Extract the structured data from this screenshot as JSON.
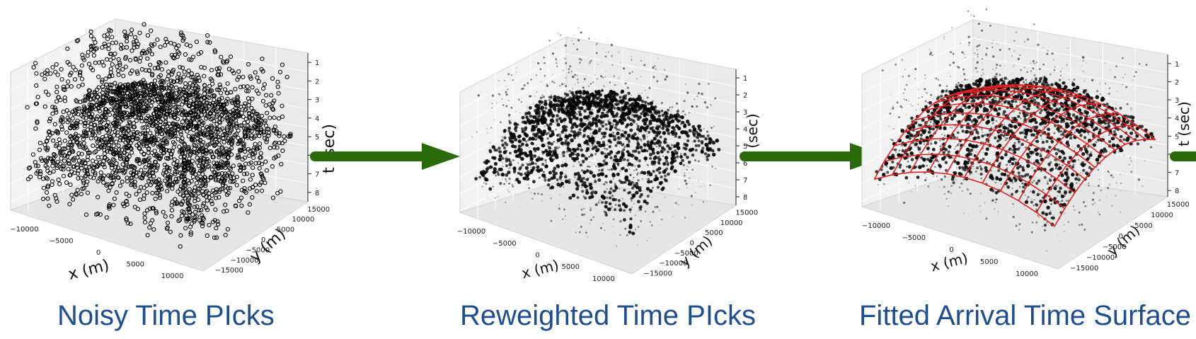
{
  "palette": {
    "arrow": "#2a6a0a",
    "surface": "#e02020",
    "caption": "#1f4e8c",
    "pane": "#f2f2f2"
  },
  "chart_data": [
    {
      "type": "scatter3d",
      "caption": "Noisy Time PIcks",
      "xlabel": "x (m)",
      "ylabel": "y (m)",
      "zlabel": "t (sec)",
      "x_ticks": [
        "−10000",
        "−5000",
        "0",
        "5000",
        "10000"
      ],
      "y_ticks": [
        "−15000",
        "−10000",
        "−5000",
        "0",
        "5000",
        "10000",
        "15000"
      ],
      "z_ticks": [
        "1",
        "2",
        "3",
        "4",
        "5",
        "6",
        "7",
        "8"
      ],
      "xlim": [
        -13000,
        13000
      ],
      "ylim": [
        -17000,
        17000
      ],
      "zlim": [
        0.5,
        8.5
      ],
      "z_inverted": true,
      "marker": "hollow-circle",
      "grid": true
    },
    {
      "type": "scatter3d",
      "caption": "Reweighted Time PIcks",
      "xlabel": "x (m)",
      "ylabel": "y (m)",
      "zlabel": "(sec)",
      "x_ticks": [
        "−10000",
        "−5000",
        "0",
        "5000",
        "10000"
      ],
      "y_ticks": [
        "−15000",
        "−10000",
        "−5000",
        "0",
        "5000",
        "10000",
        "15000"
      ],
      "z_ticks": [
        "1",
        "2",
        "3",
        "4",
        "5",
        "6",
        "7",
        "8"
      ],
      "xlim": [
        -13000,
        13000
      ],
      "ylim": [
        -17000,
        17000
      ],
      "zlim": [
        0.5,
        8.5
      ],
      "z_inverted": true,
      "marker": "weighted-dot",
      "grid": true
    },
    {
      "type": "scatter3d+surface",
      "caption": "Fitted Arrival Time Surface",
      "xlabel": "x (m)",
      "ylabel": "y (m)",
      "zlabel": "t (sec)",
      "x_ticks": [
        "−10000",
        "−5000",
        "0",
        "5000",
        "10000"
      ],
      "y_ticks": [
        "−15000",
        "−10000",
        "−5000",
        "0",
        "5000",
        "10000",
        "15000"
      ],
      "z_ticks": [
        "1",
        "2",
        "3",
        "4",
        "5",
        "6",
        "7",
        "8"
      ],
      "xlim": [
        -13000,
        13000
      ],
      "ylim": [
        -17000,
        17000
      ],
      "zlim": [
        0.5,
        8.5
      ],
      "z_inverted": true,
      "marker": "weighted-dot",
      "surface": "red-wireframe",
      "grid": true
    }
  ]
}
